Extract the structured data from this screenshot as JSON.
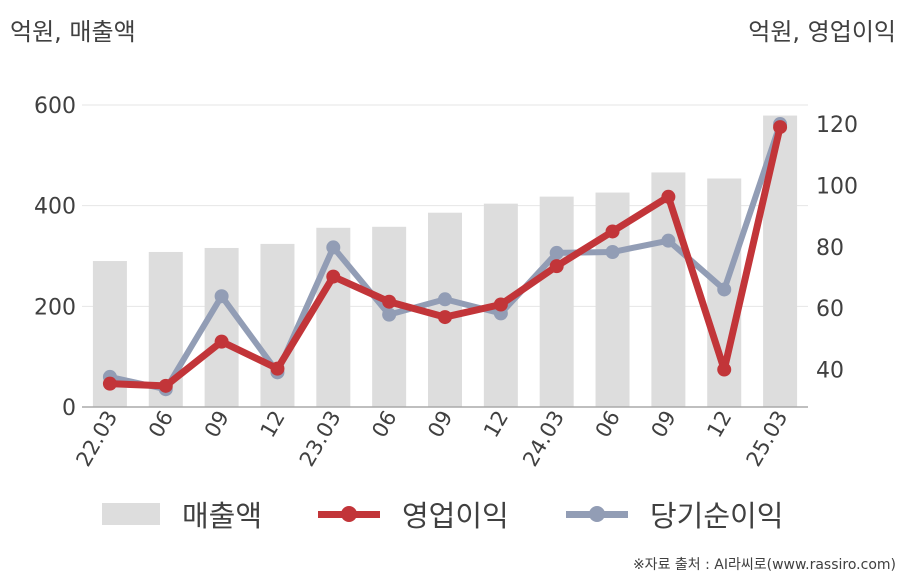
{
  "chart_data": {
    "type": "bar",
    "left_axis_unit": "억원, 매출액",
    "right_axis_unit": "억원, 영업이익",
    "categories": [
      "22.03",
      "06",
      "09",
      "12",
      "23.03",
      "06",
      "09",
      "12",
      "24.03",
      "06",
      "09",
      "12",
      "25.03"
    ],
    "series": [
      {
        "name": "매출액",
        "type": "bar",
        "axis": "left",
        "color": "#dddddd",
        "values": [
          290,
          308,
          316,
          324,
          356,
          358,
          386,
          404,
          418,
          426,
          466,
          454,
          579
        ]
      },
      {
        "name": "영업이익",
        "type": "line",
        "axis": "right",
        "color": "#c23539",
        "values": [
          35.4,
          34.7,
          49.1,
          40.3,
          70.3,
          62.1,
          57.1,
          61.2,
          73.7,
          85.0,
          96.3,
          40.0,
          119.0
        ]
      },
      {
        "name": "당기순이익",
        "type": "line",
        "axis": "right",
        "color": "#929db5",
        "values": [
          37.6,
          33.6,
          63.9,
          39.1,
          79.8,
          57.9,
          62.9,
          58.3,
          78.0,
          78.3,
          82.0,
          66.1,
          120.0
        ]
      }
    ],
    "left_axis": {
      "ticks": [
        "0",
        "200",
        "400",
        "600"
      ],
      "range": [
        0,
        600
      ]
    },
    "right_axis": {
      "ticks": [
        "40",
        "60",
        "80",
        "100",
        "120"
      ],
      "range": [
        27.8,
        126.2
      ]
    },
    "grid": true,
    "legend_position": "bottom"
  },
  "source_note": "※자료 출처 : AI라씨로(www.rassiro.com)"
}
